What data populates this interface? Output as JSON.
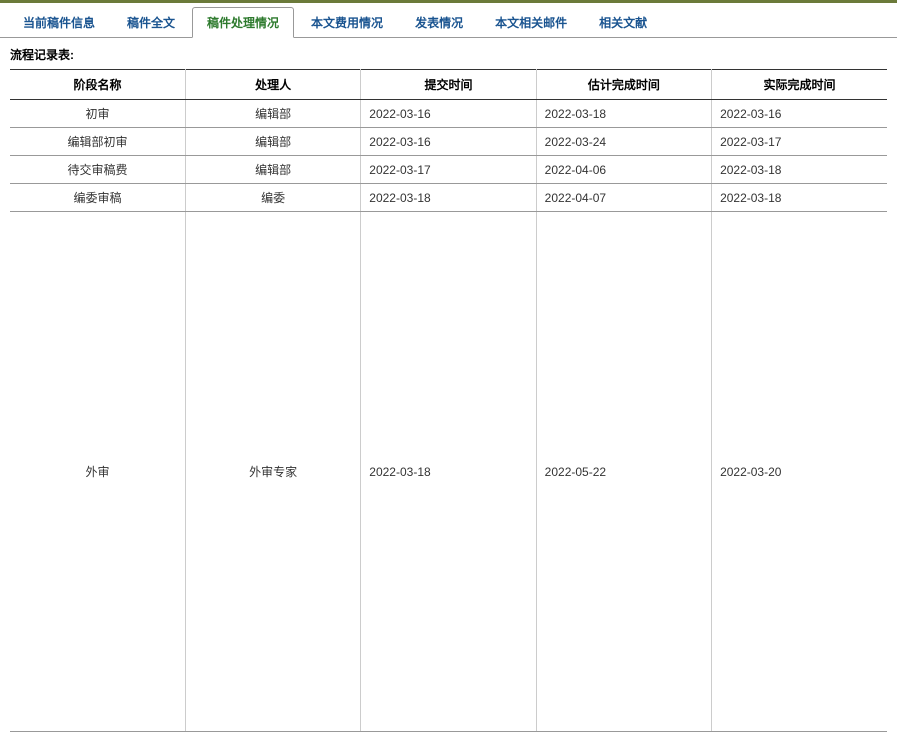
{
  "tabs": [
    {
      "label": "当前稿件信息",
      "active": false
    },
    {
      "label": "稿件全文",
      "active": false
    },
    {
      "label": "稿件处理情况",
      "active": true
    },
    {
      "label": "本文费用情况",
      "active": false
    },
    {
      "label": "发表情况",
      "active": false
    },
    {
      "label": "本文相关邮件",
      "active": false
    },
    {
      "label": "相关文献",
      "active": false
    }
  ],
  "table_title": "流程记录表:",
  "columns": {
    "stage": "阶段名称",
    "handler": "处理人",
    "submit_time": "提交时间",
    "estimated_time": "估计完成时间",
    "actual_time": "实际完成时间"
  },
  "rows": [
    {
      "stage": "初审",
      "handler": "编辑部",
      "submit_time": "2022-03-16",
      "estimated_time": "2022-03-18",
      "actual_time": "2022-03-16",
      "tall": false
    },
    {
      "stage": "编辑部初审",
      "handler": "编辑部",
      "submit_time": "2022-03-16",
      "estimated_time": "2022-03-24",
      "actual_time": "2022-03-17",
      "tall": false
    },
    {
      "stage": "待交审稿费",
      "handler": "编辑部",
      "submit_time": "2022-03-17",
      "estimated_time": "2022-04-06",
      "actual_time": "2022-03-18",
      "tall": false
    },
    {
      "stage": "编委审稿",
      "handler": "编委",
      "submit_time": "2022-03-18",
      "estimated_time": "2022-04-07",
      "actual_time": "2022-03-18",
      "tall": false
    },
    {
      "stage": "外审",
      "handler": "外审专家",
      "submit_time": "2022-03-18",
      "estimated_time": "2022-05-22",
      "actual_time": "2022-03-20",
      "tall": true
    }
  ]
}
